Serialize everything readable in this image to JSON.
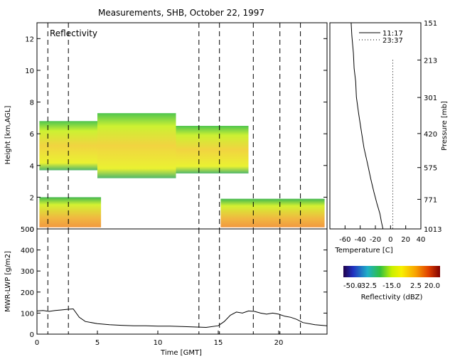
{
  "title": "Measurements, SHB, October 22, 1997",
  "chart_data": [
    {
      "id": "reflectivity",
      "type": "heatmap",
      "panel_label": "Reflectivity",
      "xlabel": "",
      "ylabel": "Height [km,AGL]",
      "xlim": [
        0,
        24
      ],
      "ylim": [
        0,
        13
      ],
      "yticks": [
        0,
        2,
        4,
        6,
        8,
        10,
        12
      ],
      "dashed_times": [
        0.9,
        2.6,
        13.4,
        15.1,
        17.9,
        20.1,
        21.8
      ],
      "echo_layers": [
        {
          "t0": 0.2,
          "t1": 5.0,
          "bottom": 3.7,
          "top": 6.8,
          "dbz": -15
        },
        {
          "t0": 5.0,
          "t1": 11.5,
          "bottom": 3.2,
          "top": 7.3,
          "dbz": -20
        },
        {
          "t0": 11.5,
          "t1": 17.5,
          "bottom": 3.5,
          "top": 6.5,
          "dbz": -20
        },
        {
          "t0": 0.2,
          "t1": 5.3,
          "bottom": 0.1,
          "top": 2.0,
          "dbz": -10
        },
        {
          "t0": 15.2,
          "t1": 23.8,
          "bottom": 0.1,
          "top": 1.9,
          "dbz": -12
        }
      ]
    },
    {
      "id": "lwp",
      "type": "line",
      "xlabel": "Time [GMT]",
      "ylabel": "MWR-LWP [g/m2]",
      "xlim": [
        0,
        24
      ],
      "ylim": [
        0,
        500
      ],
      "xticks": [
        0,
        5,
        10,
        15,
        20
      ],
      "yticks": [
        0,
        100,
        200,
        300,
        400,
        500
      ],
      "x": [
        0,
        0.5,
        1,
        1.5,
        2,
        2.5,
        3,
        3.5,
        4,
        5,
        6,
        7,
        8,
        9,
        10,
        11,
        12,
        13,
        14,
        15,
        15.5,
        16,
        16.5,
        17,
        17.5,
        18,
        18.5,
        19,
        19.5,
        20,
        20.5,
        21,
        21.5,
        22,
        23,
        24
      ],
      "y": [
        110,
        112,
        108,
        112,
        115,
        118,
        120,
        80,
        60,
        50,
        45,
        42,
        40,
        40,
        38,
        38,
        36,
        34,
        32,
        40,
        60,
        90,
        105,
        100,
        110,
        108,
        100,
        95,
        100,
        95,
        85,
        80,
        70,
        55,
        45,
        40
      ]
    },
    {
      "id": "temperature",
      "type": "line",
      "xlabel": "Temperature [C]",
      "ylabel": "Pressure [mb]",
      "xlim": [
        -80,
        40
      ],
      "xticks": [
        -60,
        -40,
        -20,
        0,
        20,
        40
      ],
      "yticks": [
        151,
        213,
        301,
        420,
        575,
        771,
        1013
      ],
      "legend_position": "top-right",
      "series": [
        {
          "name": "11:17",
          "style": "solid",
          "x": [
            -52,
            -51,
            -49,
            -48,
            -46,
            -45,
            -42,
            -38,
            -35,
            -30,
            -26,
            -22,
            -18,
            -14,
            -12,
            -10
          ],
          "pressure": [
            151,
            170,
            200,
            230,
            260,
            300,
            350,
            420,
            480,
            560,
            640,
            720,
            800,
            880,
            950,
            1013
          ]
        },
        {
          "name": "23:37",
          "style": "dotted",
          "x": [
            3,
            3
          ],
          "pressure": [
            213,
            1013
          ]
        }
      ]
    },
    {
      "id": "colorbar",
      "type": "colorbar",
      "tick_labels": [
        "-50.0",
        "-32.5",
        "-15.0",
        "2.5",
        "20.0"
      ],
      "label": "Reflectivity (dBZ)"
    }
  ]
}
